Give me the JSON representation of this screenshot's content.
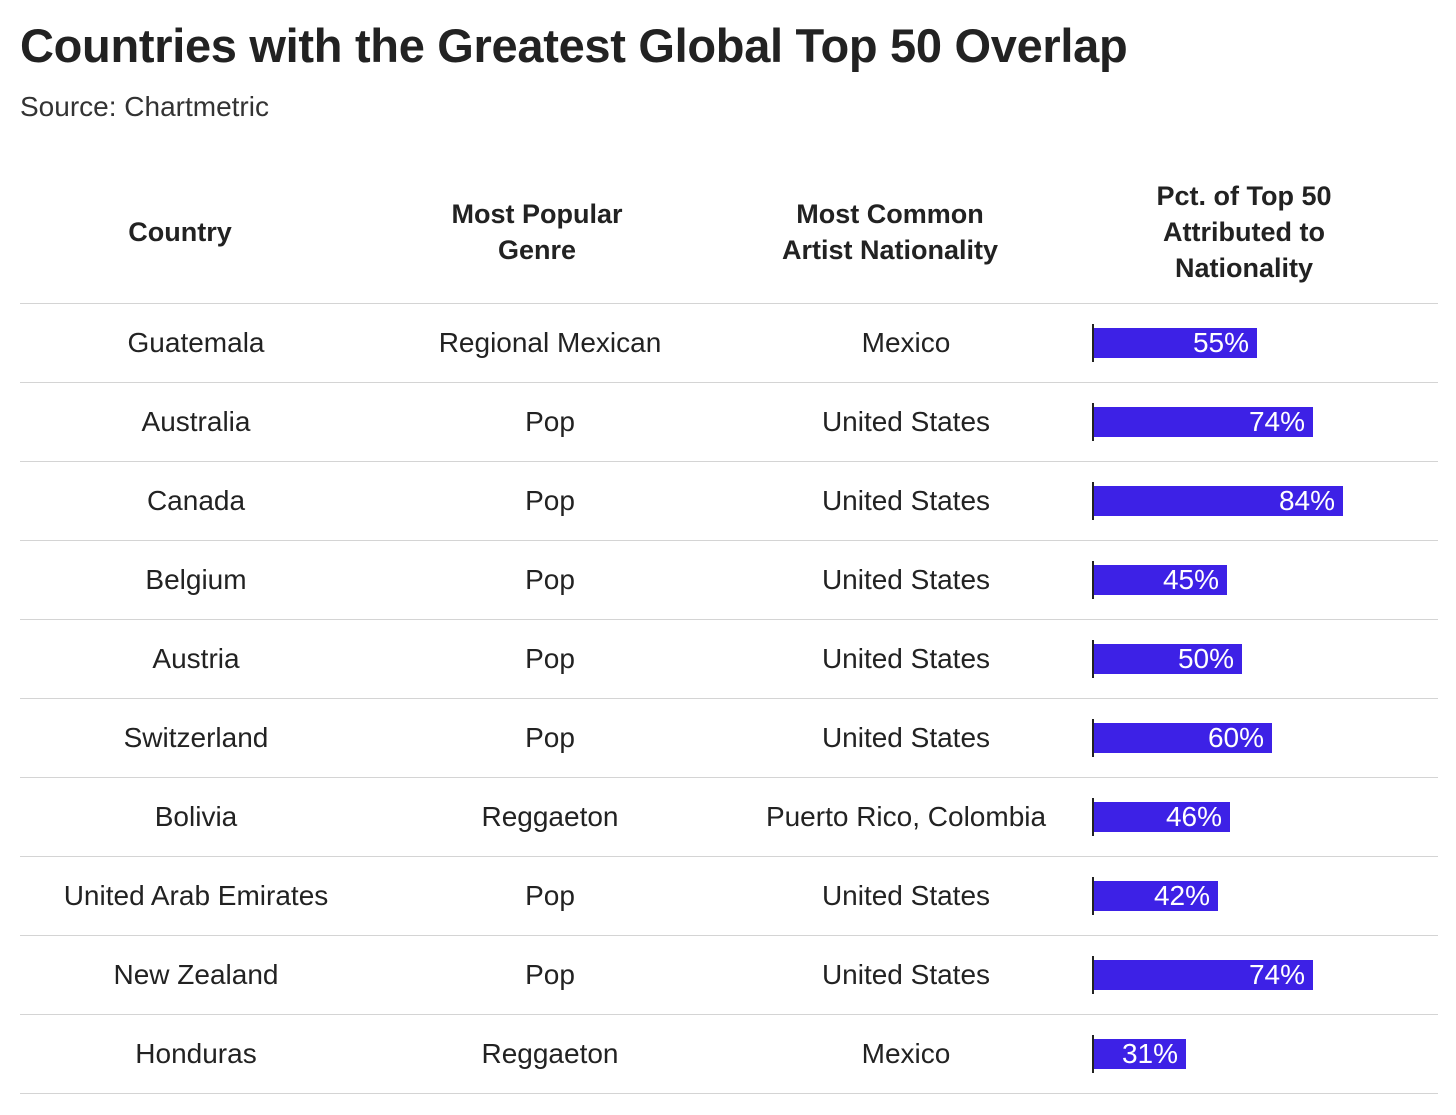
{
  "title": "Countries with the Greatest Global Top 50 Overlap",
  "subtitle": "Source: Chartmetric",
  "headers": {
    "country": "Country",
    "genre_l1": "Most Popular",
    "genre_l2": "Genre",
    "nat_l1": "Most Common",
    "nat_l2": "Artist Nationality",
    "pct_l1": "Pct. of Top 50",
    "pct_l2": "Attributed to",
    "pct_l3": "Nationality"
  },
  "colors": {
    "bar": "#3d21e6",
    "text": "#222222",
    "rule": "#d4d4d4"
  },
  "chart_data": {
    "type": "table",
    "title": "Countries with the Greatest Global Top 50 Overlap",
    "subtitle": "Source: Chartmetric",
    "columns": [
      "Country",
      "Most Popular Genre",
      "Most Common Artist Nationality",
      "Pct. of Top 50 Attributed to Nationality"
    ],
    "bar_column": "Pct. of Top 50 Attributed to Nationality",
    "rows": [
      {
        "country": "Guatemala",
        "genre": "Regional Mexican",
        "nationality": "Mexico",
        "pct": 55,
        "pct_label": "55%"
      },
      {
        "country": "Australia",
        "genre": "Pop",
        "nationality": "United States",
        "pct": 74,
        "pct_label": "74%"
      },
      {
        "country": "Canada",
        "genre": "Pop",
        "nationality": "United States",
        "pct": 84,
        "pct_label": "84%"
      },
      {
        "country": "Belgium",
        "genre": "Pop",
        "nationality": "United States",
        "pct": 45,
        "pct_label": "45%"
      },
      {
        "country": "Austria",
        "genre": "Pop",
        "nationality": "United States",
        "pct": 50,
        "pct_label": "50%"
      },
      {
        "country": "Switzerland",
        "genre": "Pop",
        "nationality": "United States",
        "pct": 60,
        "pct_label": "60%"
      },
      {
        "country": "Bolivia",
        "genre": "Reggaeton",
        "nationality": "Puerto Rico, Colombia",
        "pct": 46,
        "pct_label": "46%"
      },
      {
        "country": "United Arab Emirates",
        "genre": "Pop",
        "nationality": "United States",
        "pct": 42,
        "pct_label": "42%"
      },
      {
        "country": "New Zealand",
        "genre": "Pop",
        "nationality": "United States",
        "pct": 74,
        "pct_label": "74%"
      },
      {
        "country": "Honduras",
        "genre": "Reggaeton",
        "nationality": "Mexico",
        "pct": 31,
        "pct_label": "31%"
      }
    ]
  }
}
